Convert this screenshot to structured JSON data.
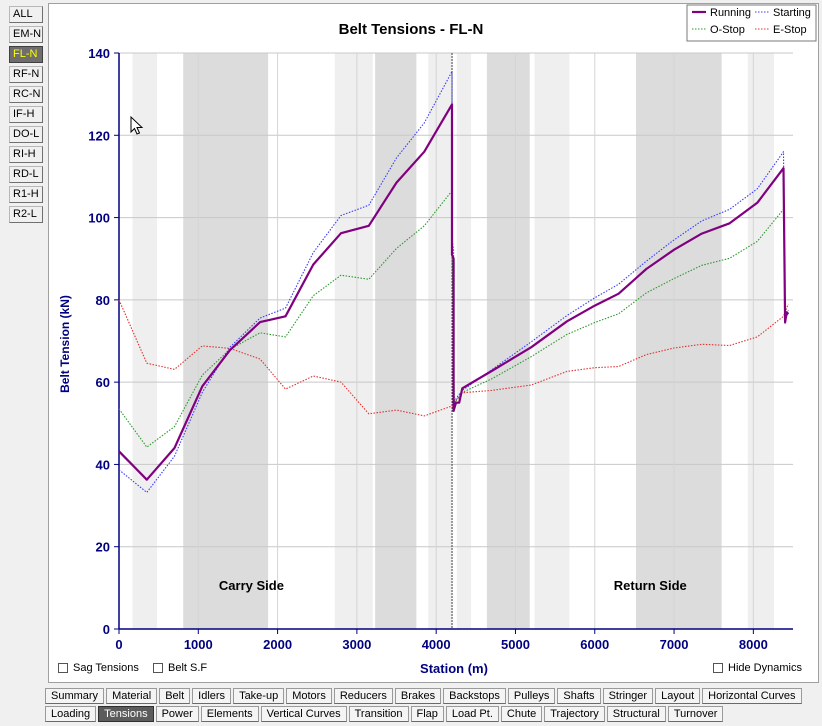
{
  "side_tabs": [
    {
      "label": "ALL",
      "active": false
    },
    {
      "label": "EM-N",
      "active": false
    },
    {
      "label": "FL-N",
      "active": true
    },
    {
      "label": "RF-N",
      "active": false
    },
    {
      "label": "RC-N",
      "active": false
    },
    {
      "label": "IF-H",
      "active": false
    },
    {
      "label": "DO-L",
      "active": false
    },
    {
      "label": "RI-H",
      "active": false
    },
    {
      "label": "RD-L",
      "active": false
    },
    {
      "label": "R1-H",
      "active": false
    },
    {
      "label": "R2-L",
      "active": false
    }
  ],
  "checkboxes": {
    "sag": {
      "label": "Sag Tensions",
      "checked": false
    },
    "belt_sf": {
      "label": "Belt S.F",
      "checked": false
    },
    "hide_dynamics": {
      "label": "Hide Dynamics",
      "checked": false
    }
  },
  "bottom_tabs_row1": [
    {
      "label": "Summary",
      "active": false
    },
    {
      "label": "Material",
      "active": false
    },
    {
      "label": "Belt",
      "active": false
    },
    {
      "label": "Idlers",
      "active": false
    },
    {
      "label": "Take-up",
      "active": false
    },
    {
      "label": "Motors",
      "active": false
    },
    {
      "label": "Reducers",
      "active": false
    },
    {
      "label": "Brakes",
      "active": false
    },
    {
      "label": "Backstops",
      "active": false
    },
    {
      "label": "Pulleys",
      "active": false
    },
    {
      "label": "Shafts",
      "active": false
    },
    {
      "label": "Stringer",
      "active": false
    },
    {
      "label": "Layout",
      "active": false
    },
    {
      "label": "Horizontal Curves",
      "active": false
    }
  ],
  "bottom_tabs_row2": [
    {
      "label": "Loading",
      "active": false
    },
    {
      "label": "Tensions",
      "active": true
    },
    {
      "label": "Power",
      "active": false
    },
    {
      "label": "Elements",
      "active": false
    },
    {
      "label": "Vertical Curves",
      "active": false
    },
    {
      "label": "Transition",
      "active": false
    },
    {
      "label": "Flap",
      "active": false
    },
    {
      "label": "Load Pt.",
      "active": false
    },
    {
      "label": "Chute",
      "active": false
    },
    {
      "label": "Trajectory",
      "active": false
    },
    {
      "label": "Structural",
      "active": false
    },
    {
      "label": "Turnover",
      "active": false
    }
  ],
  "chart_data": {
    "type": "line",
    "title": "Belt Tensions - FL-N",
    "xlabel": "Station (m)",
    "ylabel": "Belt Tension (kN)",
    "xlim": [
      0,
      8500
    ],
    "ylim": [
      0,
      140
    ],
    "x_ticks": [
      0,
      1000,
      2000,
      3000,
      4000,
      5000,
      6000,
      7000,
      8000
    ],
    "y_ticks": [
      0,
      20,
      40,
      60,
      80,
      100,
      120,
      140
    ],
    "grid": true,
    "legend_position": "top-right",
    "annotations": [
      {
        "text": "Carry Side",
        "x": 1670,
        "y": 9.5
      },
      {
        "text": "Return Side",
        "x": 6700,
        "y": 9.5
      }
    ],
    "marker_line_x": 4200,
    "shaded_bands": [
      {
        "from": 170,
        "to": 480,
        "shade": "light"
      },
      {
        "from": 810,
        "to": 1880,
        "shade": "dark"
      },
      {
        "from": 2720,
        "to": 3200,
        "shade": "light"
      },
      {
        "from": 3230,
        "to": 3750,
        "shade": "dark"
      },
      {
        "from": 3900,
        "to": 4200,
        "shade": "light"
      },
      {
        "from": 4260,
        "to": 4440,
        "shade": "light"
      },
      {
        "from": 4640,
        "to": 5180,
        "shade": "dark"
      },
      {
        "from": 5240,
        "to": 5680,
        "shade": "light"
      },
      {
        "from": 6520,
        "to": 7600,
        "shade": "dark"
      },
      {
        "from": 7930,
        "to": 8260,
        "shade": "light"
      }
    ],
    "series": [
      {
        "name": "Running",
        "color": "#800080",
        "style": "solid",
        "x": [
          0,
          350,
          700,
          1050,
          1400,
          1780,
          2100,
          2450,
          2800,
          3150,
          3500,
          3850,
          4200,
          4200,
          4220,
          4220,
          4250,
          4290,
          4330,
          4700,
          5200,
          5650,
          6000,
          6300,
          6650,
          7000,
          7350,
          7700,
          8050,
          8380,
          8400,
          8420,
          8440
        ],
        "y": [
          43.2,
          36.3,
          44.0,
          59.0,
          67.8,
          74.6,
          76.0,
          88.6,
          96.2,
          98.0,
          108.5,
          116.0,
          127.5,
          91.0,
          90.0,
          53.0,
          55.0,
          55.0,
          58.5,
          62.7,
          68.5,
          74.8,
          78.6,
          81.5,
          87.5,
          92.2,
          96.1,
          98.6,
          103.6,
          112.0,
          74.5,
          77.0,
          76.5
        ]
      },
      {
        "name": "Starting",
        "color": "#3a3aff",
        "style": "dotted",
        "x": [
          0,
          350,
          700,
          1050,
          1400,
          1780,
          2100,
          2450,
          2800,
          3150,
          3500,
          3850,
          4200,
          4200,
          4220,
          4220,
          4250,
          4330,
          4700,
          5200,
          5650,
          6000,
          6300,
          6650,
          7000,
          7350,
          7700,
          8050,
          8380,
          8400,
          8440
        ],
        "y": [
          38.7,
          33.2,
          42.0,
          57.5,
          68.5,
          75.6,
          78.0,
          91.5,
          100.5,
          103.0,
          114.5,
          123.0,
          135.5,
          95.0,
          92.0,
          54.0,
          56.0,
          58.0,
          63.0,
          69.8,
          76.2,
          80.5,
          83.8,
          89.4,
          94.6,
          99.2,
          102.0,
          107.0,
          116.0,
          75.0,
          77.5
        ]
      },
      {
        "name": "O-Stop",
        "color": "#2a9a2a",
        "style": "dotted",
        "x": [
          0,
          350,
          700,
          1050,
          1400,
          1780,
          2100,
          2450,
          2800,
          3150,
          3500,
          3850,
          4200,
          4200,
          4230,
          4330,
          4700,
          5200,
          5650,
          6000,
          6300,
          6650,
          7000,
          7350,
          7700,
          8050,
          8380,
          8400,
          8440
        ],
        "y": [
          53.5,
          44.2,
          49.2,
          61.7,
          68.0,
          72.0,
          71.0,
          81.0,
          86.0,
          85.0,
          92.5,
          98.0,
          106.5,
          93.0,
          55.0,
          57.5,
          60.8,
          66.2,
          71.6,
          74.5,
          76.6,
          81.7,
          85.2,
          88.4,
          90.1,
          94.2,
          102.0,
          75.0,
          77.0
        ]
      },
      {
        "name": "E-Stop",
        "color": "#e03030",
        "style": "dotted",
        "x": [
          0,
          350,
          700,
          1050,
          1400,
          1780,
          2100,
          2450,
          2800,
          3150,
          3500,
          3850,
          4200,
          4330,
          4700,
          5200,
          5650,
          6000,
          6300,
          6650,
          7000,
          7350,
          7700,
          8050,
          8380,
          8440
        ],
        "y": [
          80.0,
          64.6,
          63.1,
          68.8,
          68.2,
          65.6,
          58.3,
          61.5,
          60.0,
          52.3,
          53.2,
          51.8,
          54.2,
          57.4,
          58.0,
          59.3,
          62.6,
          63.5,
          63.8,
          66.7,
          68.3,
          69.2,
          68.9,
          71.0,
          76.0,
          79.0
        ]
      }
    ]
  }
}
